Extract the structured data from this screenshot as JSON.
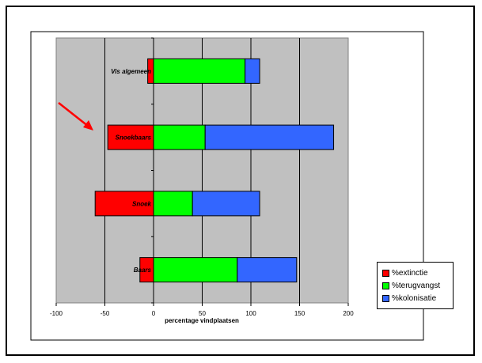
{
  "chart_data": {
    "type": "bar",
    "orientation": "horizontal",
    "stacked": true,
    "categories": [
      "Vis algemeen",
      "Snoekbaars",
      "Snoek",
      "Baars"
    ],
    "series": [
      {
        "name": "%extinctie",
        "color": "#ff0000",
        "values": [
          -6,
          -47,
          -60,
          -14
        ]
      },
      {
        "name": "%terugvangst",
        "color": "#00ff00",
        "values": [
          94,
          53,
          40,
          86
        ]
      },
      {
        "name": "%kolonisatie",
        "color": "#3366ff",
        "values": [
          15,
          132,
          69,
          61
        ]
      }
    ],
    "xlabel": "percentage vindplaatsen",
    "ylabel": "",
    "xlim": [
      -100,
      200
    ],
    "xticks": [
      "-100",
      "-50",
      "0",
      "50",
      "100",
      "150",
      "200"
    ],
    "grid": "vertical major gridlines",
    "legend_placement": "bottom-right",
    "plot_background": "#c0c0c0",
    "annotation": "red arrow pointing at Snoekbaars"
  }
}
